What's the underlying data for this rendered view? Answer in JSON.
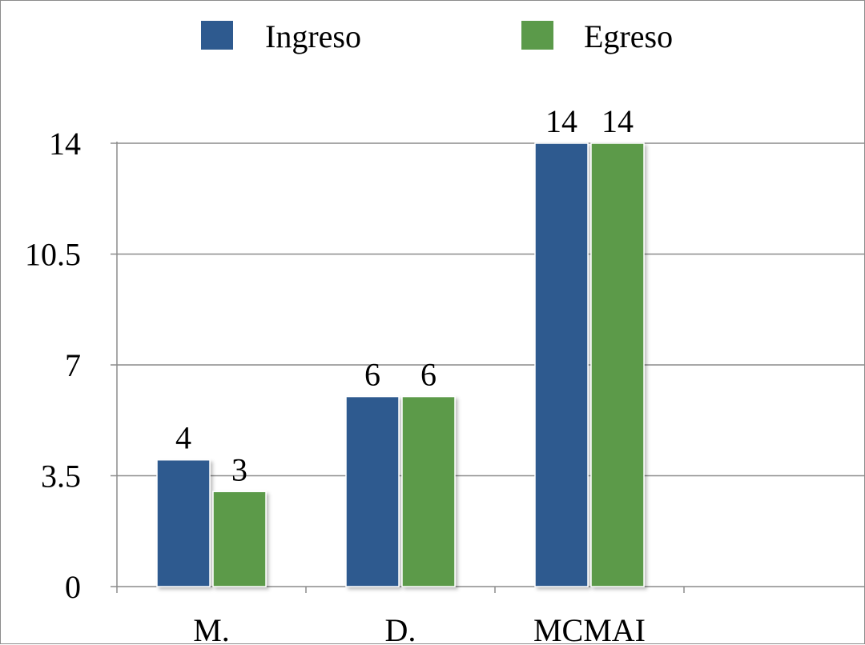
{
  "chart_data": {
    "type": "bar",
    "categories": [
      "M.",
      "D.",
      "MCMAI",
      ""
    ],
    "series": [
      {
        "name": "Ingreso",
        "color": "#2e5a8f",
        "values": [
          4,
          6,
          14,
          null
        ]
      },
      {
        "name": "Egreso",
        "color": "#5b9a4a",
        "values": [
          3,
          6,
          14,
          null
        ]
      }
    ],
    "title": "",
    "xlabel": "",
    "ylabel": "",
    "ylim": [
      0,
      14
    ],
    "yticks": [
      "0",
      "3.5",
      "7",
      "10.5",
      "14"
    ],
    "data_labels": [
      [
        "4",
        "6",
        "14",
        ""
      ],
      [
        "3",
        "6",
        "14",
        ""
      ]
    ],
    "grid": true,
    "legend_position": "top-center"
  }
}
